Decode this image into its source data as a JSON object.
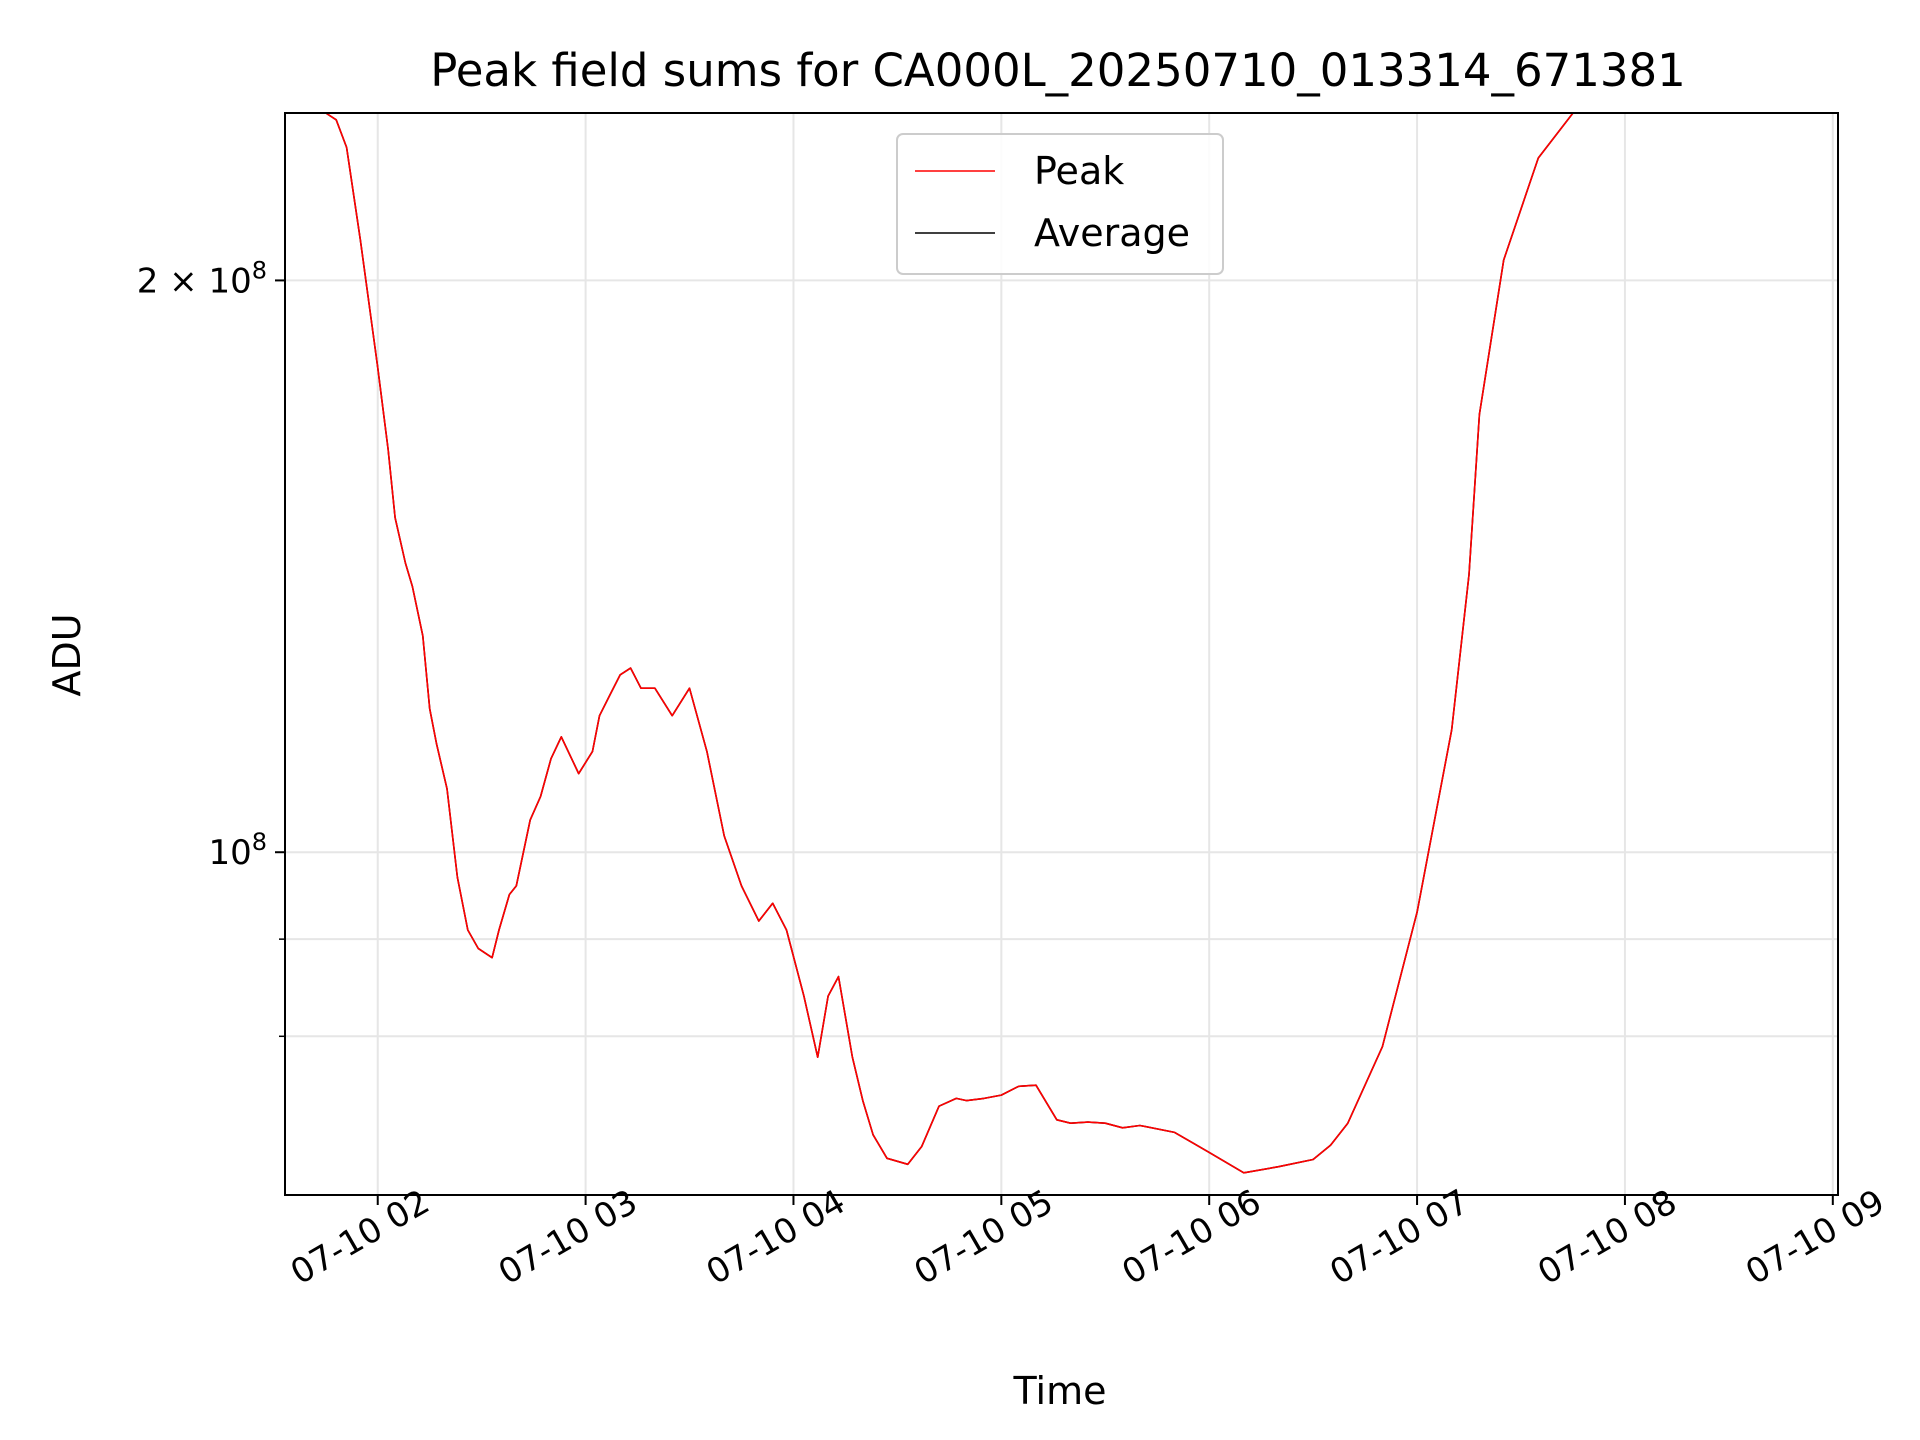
{
  "chart_data": {
    "type": "line",
    "title": "Peak field sums for CA000L_20250710_013314_671381",
    "xlabel": "Time",
    "ylabel": "ADU",
    "yscale": "log",
    "ylim": [
      66000000,
      245000000
    ],
    "xlim": [
      "2025-07-10 01:33:14",
      "2025-07-10 09:01:30"
    ],
    "x_ticks": [
      "07-10 02",
      "07-10 03",
      "07-10 04",
      "07-10 05",
      "07-10 06",
      "07-10 07",
      "07-10 08",
      "07-10 09"
    ],
    "y_ticks": [
      {
        "label_base": "2 × 10",
        "label_exp": "8",
        "value": 200000000
      },
      {
        "label_base": "10",
        "label_exp": "8",
        "value": 100000000
      }
    ],
    "grid": true,
    "legend_position": "upper center",
    "series": [
      {
        "name": "Peak",
        "color": "#ff0000",
        "x": [
          "01:33:14",
          "01:45:00",
          "01:48:00",
          "01:51:00",
          "01:55:00",
          "02:00:00",
          "02:03:00",
          "02:05:00",
          "02:08:00",
          "02:10:00",
          "02:13:00",
          "02:15:00",
          "02:17:00",
          "02:20:00",
          "02:23:00",
          "02:26:00",
          "02:29:00",
          "02:33:00",
          "02:35:00",
          "02:38:00",
          "02:40:00",
          "02:44:00",
          "02:47:00",
          "02:50:00",
          "02:53:00",
          "02:58:00",
          "03:02:00",
          "03:04:00",
          "03:07:00",
          "03:10:00",
          "03:13:00",
          "03:16:00",
          "03:20:00",
          "03:25:00",
          "03:30:00",
          "03:35:00",
          "03:40:00",
          "03:45:00",
          "03:50:00",
          "03:54:00",
          "03:58:00",
          "04:03:00",
          "04:07:00",
          "04:10:00",
          "04:13:00",
          "04:17:00",
          "04:20:00",
          "04:23:00",
          "04:27:00",
          "04:33:00",
          "04:37:00",
          "04:42:00",
          "04:47:00",
          "04:50:00",
          "04:55:00",
          "05:00:00",
          "05:05:00",
          "05:10:00",
          "05:16:00",
          "05:20:00",
          "05:25:00",
          "05:30:00",
          "05:35:00",
          "05:40:00",
          "05:50:00",
          "06:00:00",
          "06:10:00",
          "06:20:00",
          "06:30:00",
          "06:35:00",
          "06:40:00",
          "06:50:00",
          "07:00:00",
          "07:10:00",
          "07:15:00",
          "07:18:00",
          "07:25:00",
          "07:35:00",
          "07:45:00",
          "07:50:00",
          "07:55:00",
          "07:58:00",
          "08:02:00",
          "08:07:00",
          "08:12:00",
          "08:16:00",
          "08:20:00",
          "08:25:00",
          "08:30:00",
          "08:35:00",
          "08:40:00",
          "08:45:00",
          "08:50:00",
          "08:55:00",
          "09:01:30"
        ],
        "values": [
          245000000,
          245000000,
          243000000,
          235000000,
          210000000,
          180000000,
          163000000,
          150000000,
          142000000,
          138000000,
          130000000,
          119000000,
          114000000,
          108000000,
          97000000,
          91000000,
          89000000,
          88000000,
          91000000,
          95000000,
          96000000,
          104000000,
          107000000,
          112000000,
          115000000,
          110000000,
          113000000,
          118000000,
          121000000,
          124000000,
          125000000,
          122000000,
          122000000,
          118000000,
          122000000,
          113000000,
          102000000,
          96000000,
          92000000,
          94000000,
          91000000,
          84000000,
          78000000,
          84000000,
          86000000,
          78000000,
          74000000,
          71000000,
          69000000,
          68500000,
          70000000,
          73500000,
          74200000,
          74000000,
          74200000,
          74500000,
          75300000,
          75400000,
          72300000,
          72000000,
          72100000,
          72000000,
          71600000,
          71800000,
          71200000,
          69500000,
          67800000,
          68300000,
          68900000,
          70100000,
          72000000,
          79000000,
          93000000,
          116000000,
          140000000,
          170000000,
          205000000,
          232000000,
          245000000,
          245000000,
          245000000,
          245000000,
          245000000,
          245000000,
          245000000,
          245000000,
          245000000,
          245000000,
          245000000,
          245000000,
          245000000,
          245000000,
          245000000,
          245000000,
          245000000
        ]
      },
      {
        "name": "Average",
        "color": "#000000",
        "x": [
          "01:33:14",
          "01:45:00",
          "01:48:00",
          "01:51:00",
          "01:55:00",
          "02:00:00",
          "02:03:00",
          "02:05:00",
          "02:08:00",
          "02:10:00",
          "02:13:00",
          "02:15:00",
          "02:17:00",
          "02:20:00",
          "02:23:00",
          "02:26:00",
          "02:29:00",
          "02:33:00",
          "02:35:00",
          "02:38:00",
          "02:40:00",
          "02:44:00",
          "02:47:00",
          "02:50:00",
          "02:53:00",
          "02:58:00",
          "03:02:00",
          "03:04:00",
          "03:07:00",
          "03:10:00",
          "03:13:00",
          "03:16:00",
          "03:20:00",
          "03:25:00",
          "03:30:00",
          "03:35:00",
          "03:40:00",
          "03:45:00",
          "03:50:00",
          "03:54:00",
          "03:58:00",
          "04:03:00",
          "04:07:00",
          "04:10:00",
          "04:13:00",
          "04:17:00",
          "04:20:00",
          "04:23:00",
          "04:27:00",
          "04:33:00",
          "04:37:00",
          "04:42:00",
          "04:47:00",
          "04:50:00",
          "04:55:00",
          "05:00:00",
          "05:05:00",
          "05:10:00",
          "05:16:00",
          "05:20:00",
          "05:25:00",
          "05:30:00",
          "05:35:00",
          "05:40:00",
          "05:50:00",
          "06:00:00",
          "06:10:00",
          "06:20:00",
          "06:30:00",
          "06:35:00",
          "06:40:00",
          "06:50:00",
          "07:00:00",
          "07:10:00",
          "07:15:00",
          "07:18:00",
          "07:25:00",
          "07:35:00",
          "07:45:00",
          "07:50:00",
          "07:55:00",
          "07:58:00",
          "08:02:00",
          "08:07:00",
          "08:12:00",
          "08:16:00",
          "08:20:00",
          "08:25:00",
          "08:30:00",
          "08:35:00",
          "08:40:00",
          "08:45:00",
          "08:50:00",
          "08:55:00",
          "09:01:30"
        ],
        "values": [
          245000000,
          245000000,
          243000000,
          235000000,
          210000000,
          180000000,
          163000000,
          150000000,
          142000000,
          138000000,
          130000000,
          119000000,
          114000000,
          108000000,
          97000000,
          91000000,
          89000000,
          88000000,
          91000000,
          95000000,
          96000000,
          104000000,
          107000000,
          112000000,
          115000000,
          110000000,
          113000000,
          118000000,
          121000000,
          124000000,
          125000000,
          122000000,
          122000000,
          118000000,
          122000000,
          113000000,
          102000000,
          96000000,
          92000000,
          94000000,
          91000000,
          84000000,
          78000000,
          84000000,
          86000000,
          78000000,
          74000000,
          71000000,
          69000000,
          68500000,
          70000000,
          73500000,
          74200000,
          74000000,
          74200000,
          74500000,
          75300000,
          75400000,
          72300000,
          72000000,
          72100000,
          72000000,
          71600000,
          71800000,
          71200000,
          69500000,
          67800000,
          68300000,
          68900000,
          70100000,
          72000000,
          79000000,
          93000000,
          116000000,
          140000000,
          170000000,
          205000000,
          232000000,
          245000000,
          245000000,
          245000000,
          245000000,
          245000000,
          245000000,
          245000000,
          245000000,
          245000000,
          245000000,
          245000000,
          245000000,
          245000000,
          245000000,
          245000000,
          245000000,
          245000000
        ]
      }
    ]
  }
}
